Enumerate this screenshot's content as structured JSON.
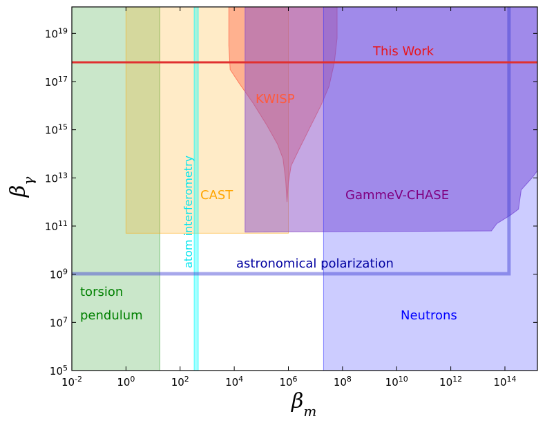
{
  "chart_data": {
    "type": "area",
    "title": "",
    "xlabel": "β_m",
    "ylabel": "β_γ",
    "xscale": "log",
    "yscale": "log",
    "xlim_log10": [
      -2,
      15.2
    ],
    "ylim_log10": [
      5,
      20.1
    ],
    "x_ticks": [
      {
        "exp": -2,
        "label": "10",
        "sup": "-2"
      },
      {
        "exp": 0,
        "label": "10",
        "sup": "0"
      },
      {
        "exp": 2,
        "label": "10",
        "sup": "2"
      },
      {
        "exp": 4,
        "label": "10",
        "sup": "4"
      },
      {
        "exp": 6,
        "label": "10",
        "sup": "6"
      },
      {
        "exp": 8,
        "label": "10",
        "sup": "8"
      },
      {
        "exp": 10,
        "label": "10",
        "sup": "10"
      },
      {
        "exp": 12,
        "label": "10",
        "sup": "12"
      },
      {
        "exp": 14,
        "label": "10",
        "sup": "14"
      }
    ],
    "y_ticks": [
      {
        "exp": 5,
        "label": "10",
        "sup": "5"
      },
      {
        "exp": 7,
        "label": "10",
        "sup": "7"
      },
      {
        "exp": 9,
        "label": "10",
        "sup": "9"
      },
      {
        "exp": 11,
        "label": "10",
        "sup": "11"
      },
      {
        "exp": 13,
        "label": "10",
        "sup": "13"
      },
      {
        "exp": 15,
        "label": "10",
        "sup": "15"
      },
      {
        "exp": 17,
        "label": "10",
        "sup": "17"
      },
      {
        "exp": 19,
        "label": "10",
        "sup": "19"
      }
    ],
    "regions": [
      {
        "name": "torsion pendulum",
        "color": "#2ca02c",
        "fill_opacity": 0.25,
        "polygon_log10": [
          [
            -2,
            5
          ],
          [
            1.25,
            5
          ],
          [
            1.25,
            20.1
          ],
          [
            -2,
            20.1
          ]
        ]
      },
      {
        "name": "CAST",
        "color": "#ffa500",
        "fill_opacity": 0.22,
        "polygon_log10": [
          [
            0,
            10.7
          ],
          [
            6,
            10.7
          ],
          [
            6,
            20.1
          ],
          [
            0,
            20.1
          ]
        ]
      },
      {
        "name": "atom interferometry",
        "color": "#00ffff",
        "fill_opacity": 0.35,
        "polygon_log10": [
          [
            2.52,
            5
          ],
          [
            2.67,
            5
          ],
          [
            2.67,
            20.1
          ],
          [
            2.52,
            20.1
          ]
        ]
      },
      {
        "name": "KWISP",
        "color": "#ff5a3c",
        "fill_opacity": 0.4,
        "polygon_log10": [
          [
            3.8,
            20.1
          ],
          [
            3.8,
            18.5
          ],
          [
            3.85,
            17.5
          ],
          [
            4.2,
            16.9
          ],
          [
            4.7,
            16.1
          ],
          [
            5.2,
            15.2
          ],
          [
            5.6,
            14.4
          ],
          [
            5.8,
            13.8
          ],
          [
            5.9,
            12.9
          ],
          [
            5.95,
            12.0
          ],
          [
            6.0,
            12.8
          ],
          [
            6.1,
            13.5
          ],
          [
            6.4,
            14.2
          ],
          [
            6.8,
            15.1
          ],
          [
            7.2,
            16.0
          ],
          [
            7.5,
            16.8
          ],
          [
            7.7,
            17.8
          ],
          [
            7.8,
            18.8
          ],
          [
            7.8,
            20.1
          ]
        ]
      },
      {
        "name": "GammeV-CHASE",
        "color": "#8c50c8",
        "fill_opacity": 0.5,
        "polygon_log10": [
          [
            4.4,
            10.75
          ],
          [
            13.5,
            10.8
          ],
          [
            13.7,
            11.1
          ],
          [
            14.2,
            11.45
          ],
          [
            14.5,
            11.7
          ],
          [
            14.6,
            12.5
          ],
          [
            15.0,
            13.0
          ],
          [
            15.2,
            13.3
          ],
          [
            15.2,
            20.1
          ],
          [
            4.4,
            20.1
          ]
        ]
      },
      {
        "name": "Neutrons",
        "color": "#3232ff",
        "fill_opacity": 0.25,
        "polygon_log10": [
          [
            7.3,
            5
          ],
          [
            15.2,
            5
          ],
          [
            15.2,
            20.1
          ],
          [
            7.3,
            20.1
          ]
        ]
      }
    ],
    "outlines": [
      {
        "name": "astronomical polarization",
        "color": "#3c3cd2",
        "opacity": 0.45,
        "width": 5,
        "points_log10": [
          [
            -2,
            9.02
          ],
          [
            14.15,
            9.02
          ],
          [
            14.15,
            20.1
          ]
        ]
      }
    ],
    "lines": [
      {
        "name": "This Work",
        "color": "#e03030",
        "width": 3,
        "y_log10": 17.8,
        "x_log10": [
          -2,
          15.2
        ]
      }
    ],
    "annotations": {
      "this_work": {
        "text": "This Work",
        "color": "#e8151b"
      },
      "kwisp": {
        "text": "KWISP",
        "color": "#ff5a3c"
      },
      "cast": {
        "text": "CAST",
        "color": "#ffa500"
      },
      "atom": {
        "text": "atom interferometry",
        "color": "#00e5ee"
      },
      "gammev": {
        "text": "GammeV-CHASE",
        "color": "#800080"
      },
      "astro": {
        "text": "astronomical polarization",
        "color": "#0000a0"
      },
      "torsion1": {
        "text": "torsion",
        "color": "#008000"
      },
      "torsion2": {
        "text": "pendulum",
        "color": "#008000"
      },
      "neutrons": {
        "text": "Neutrons",
        "color": "#0000ff"
      }
    }
  }
}
